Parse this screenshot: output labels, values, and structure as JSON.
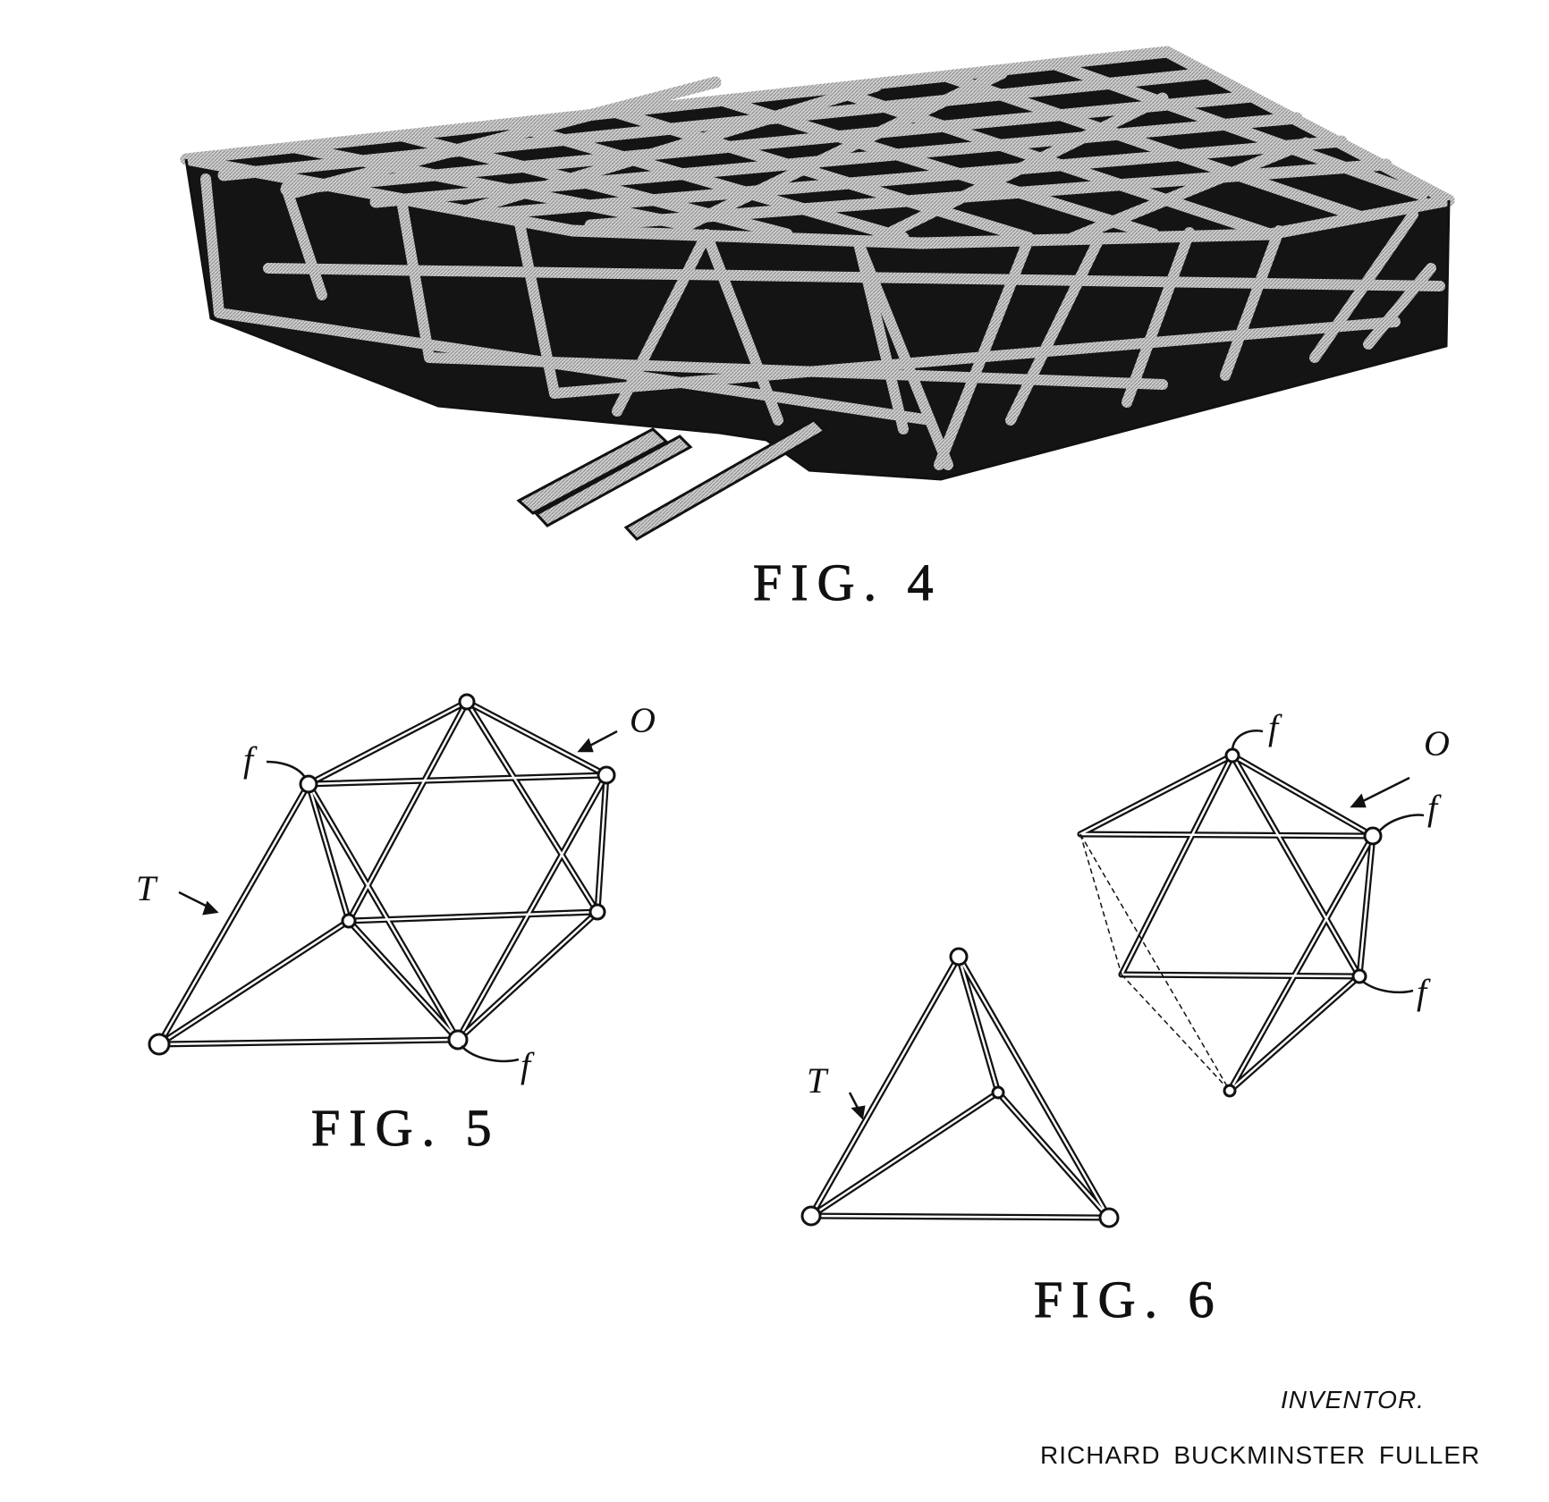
{
  "figures": {
    "fig4": {
      "caption": "FIG. 4"
    },
    "fig5": {
      "caption": "FIG. 5",
      "labels": {
        "tetra": "T",
        "octa": "O",
        "face": "f"
      }
    },
    "fig6": {
      "caption": "FIG. 6",
      "labels": {
        "tetra": "T",
        "octa": "O",
        "face": "f"
      }
    }
  },
  "inventor": {
    "heading": "INVENTOR.",
    "name": "RICHARD BUCKMINSTER FULLER"
  }
}
